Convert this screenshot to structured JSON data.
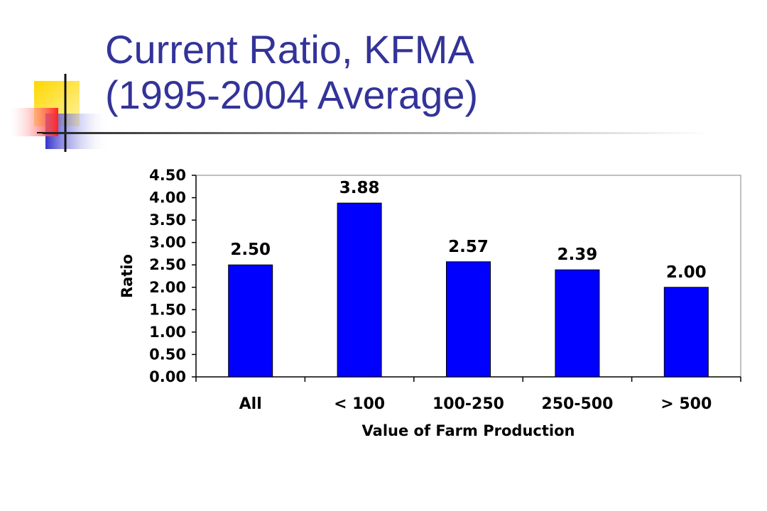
{
  "slide": {
    "title_line1": "Current Ratio, KFMA",
    "title_line2": "(1995-2004 Average)"
  },
  "colors": {
    "title": "#333399",
    "bar": "#0000FF",
    "deco_yellow": "#FFD700",
    "deco_red": "#FF3333",
    "deco_blue": "#3333CC"
  },
  "chart_data": {
    "type": "bar",
    "categories": [
      "All",
      "< 100",
      "100-250",
      "250-500",
      "> 500"
    ],
    "values": [
      2.5,
      3.88,
      2.57,
      2.39,
      2.0
    ],
    "value_labels": [
      "2.50",
      "3.88",
      "2.57",
      "2.39",
      "2.00"
    ],
    "ylim": [
      0,
      4.5
    ],
    "yticks": [
      "0.00",
      "0.50",
      "1.00",
      "1.50",
      "2.00",
      "2.50",
      "3.00",
      "3.50",
      "4.00",
      "4.50"
    ],
    "xlabel": "Value of Farm Production",
    "ylabel": "Ratio",
    "grid": false,
    "legend": "none"
  }
}
